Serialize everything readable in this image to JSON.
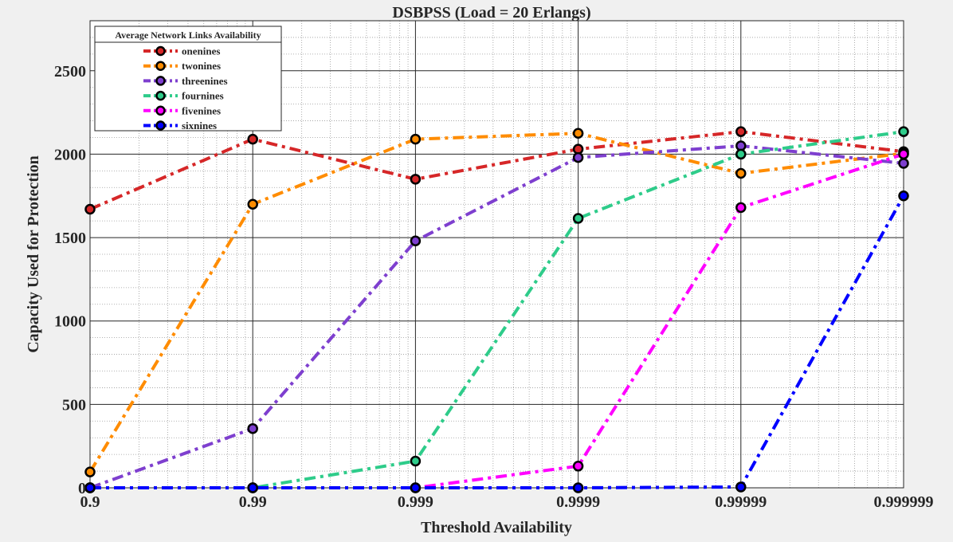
{
  "chart_data": {
    "type": "line",
    "title": "DSBPSS (Load  = 20 Erlangs)",
    "xlabel": "Threshold Availability",
    "ylabel": "Capacity Used for Protection",
    "categories": [
      "0.9",
      "0.99",
      "0.999",
      "0.9999",
      "0.99999",
      "0.999999"
    ],
    "ylim": [
      0,
      2800
    ],
    "yticks": [
      0,
      500,
      1000,
      1500,
      2000,
      2500
    ],
    "grid": "major and minor",
    "legend": {
      "title": "Average Network Links Availability",
      "placement": "top-left"
    },
    "series": [
      {
        "name": "onenines",
        "color": "#d62728",
        "values": [
          1670,
          2090,
          1850,
          2030,
          2135,
          2015
        ]
      },
      {
        "name": "twonines",
        "color": "#ff8c00",
        "values": [
          95,
          1700,
          2090,
          2125,
          1885,
          2005
        ]
      },
      {
        "name": "threenines",
        "color": "#7e3fcf",
        "values": [
          0,
          355,
          1480,
          1980,
          2050,
          1945
        ]
      },
      {
        "name": "fournines",
        "color": "#2ecc8a",
        "values": [
          0,
          0,
          160,
          1615,
          2000,
          2135
        ]
      },
      {
        "name": "fivenines",
        "color": "#ff00ff",
        "values": [
          0,
          0,
          0,
          130,
          1680,
          2000
        ]
      },
      {
        "name": "sixnines",
        "color": "#0000ff",
        "values": [
          0,
          0,
          0,
          0,
          5,
          1750
        ]
      }
    ]
  }
}
